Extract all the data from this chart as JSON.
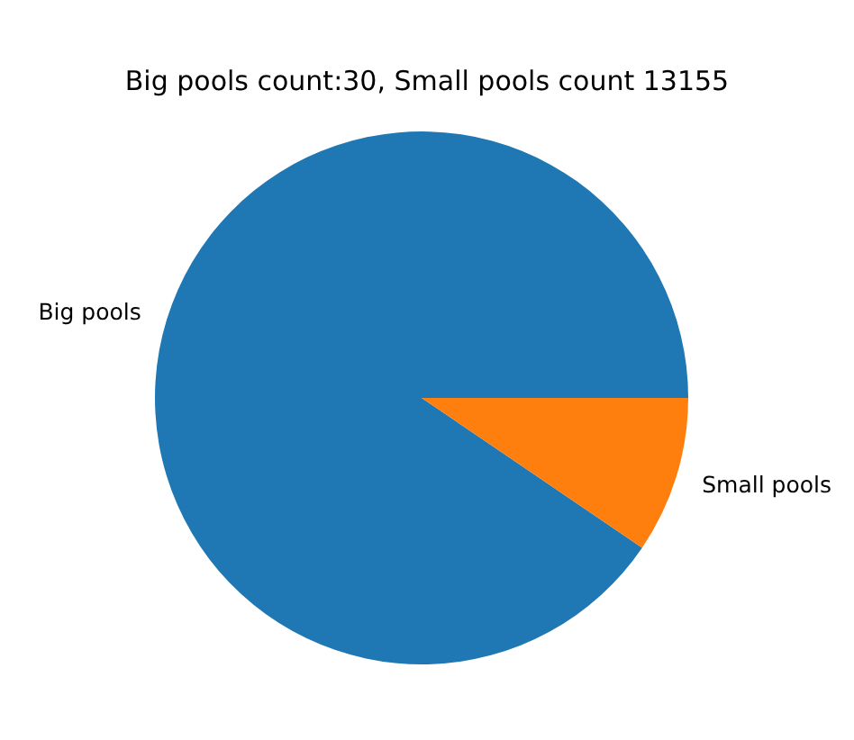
{
  "chart_data": {
    "type": "pie",
    "title": "Big pools count:30, Small pools count 13155",
    "categories": [
      "Big pools",
      "Small pools"
    ],
    "values": [
      90.5,
      9.5
    ],
    "colors": [
      "#1f77b4",
      "#ff7f0e"
    ]
  }
}
